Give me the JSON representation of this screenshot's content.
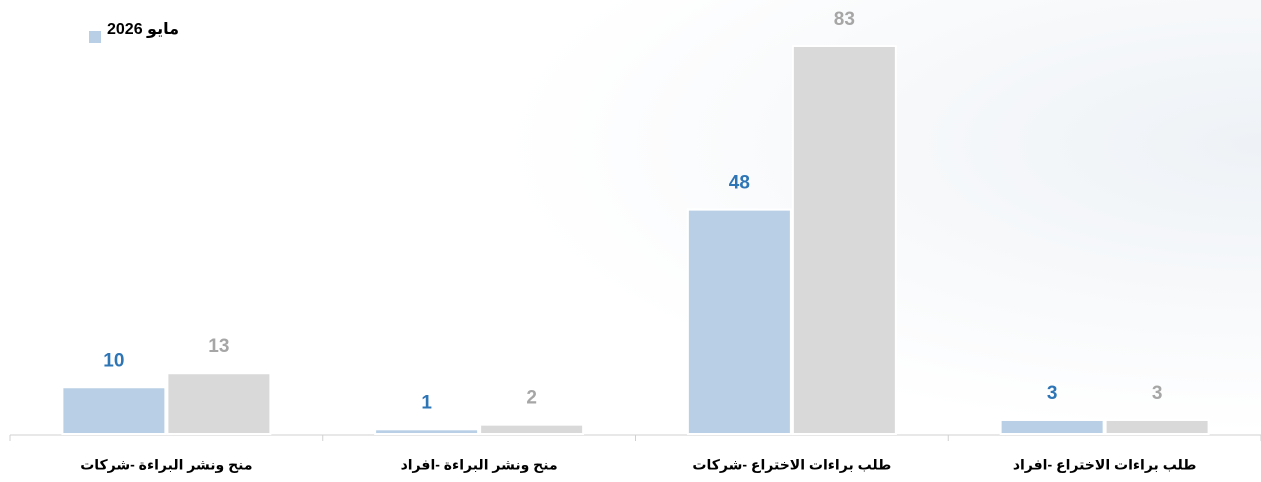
{
  "chart_data": {
    "type": "bar",
    "categories": [
      "منح ونشر البراءة -شركات",
      "منح ونشر البراءة -افراد",
      "طلب براءات الاختراع -شركات",
      "طلب براءات الاختراع -افراد"
    ],
    "series": [
      {
        "name": "مايو 2026",
        "color": "#b8cfe6",
        "label_color": "#2e75b6",
        "values": [
          10,
          1,
          48,
          3
        ]
      },
      {
        "color": "#d9d9d9",
        "label_color": "#a6a6a6",
        "values": [
          13,
          2,
          83,
          3
        ]
      }
    ],
    "legend": "top-left"
  }
}
